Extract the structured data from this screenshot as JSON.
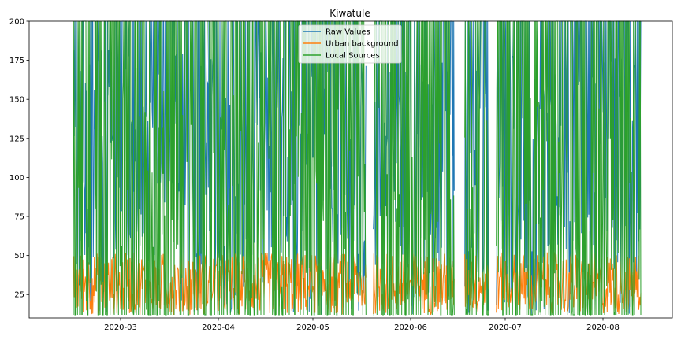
{
  "chart_data": {
    "type": "line",
    "title": "Kiwatule",
    "xlabel": "",
    "ylabel": "",
    "x_range": [
      "2020-02-01",
      "2020-08-23"
    ],
    "ylim": [
      10,
      200
    ],
    "data_x_range": [
      "2020-02-15",
      "2020-08-13"
    ],
    "x_ticks": [
      "2020-03",
      "2020-04",
      "2020-05",
      "2020-06",
      "2020-07",
      "2020-08"
    ],
    "x_tick_dates": [
      "2020-03-01",
      "2020-04-01",
      "2020-05-01",
      "2020-06-01",
      "2020-07-01",
      "2020-08-01"
    ],
    "y_ticks": [
      25,
      50,
      75,
      100,
      125,
      150,
      175,
      200
    ],
    "y_tick_labels": [
      "25",
      "50",
      "75",
      "100",
      "125",
      "150",
      "175",
      "200"
    ],
    "legend_position": "top-center",
    "grid": false,
    "gaps": [
      [
        "2020-05-18",
        "2020-05-20"
      ],
      [
        "2020-06-15",
        "2020-06-18"
      ],
      [
        "2020-06-26",
        "2020-06-28"
      ]
    ],
    "series": [
      {
        "name": "Raw Values",
        "color": "#1f77b4"
      },
      {
        "name": "Urban background",
        "color": "#ff7f0e"
      },
      {
        "name": "Local Sources",
        "color": "#2ca02c"
      }
    ]
  }
}
